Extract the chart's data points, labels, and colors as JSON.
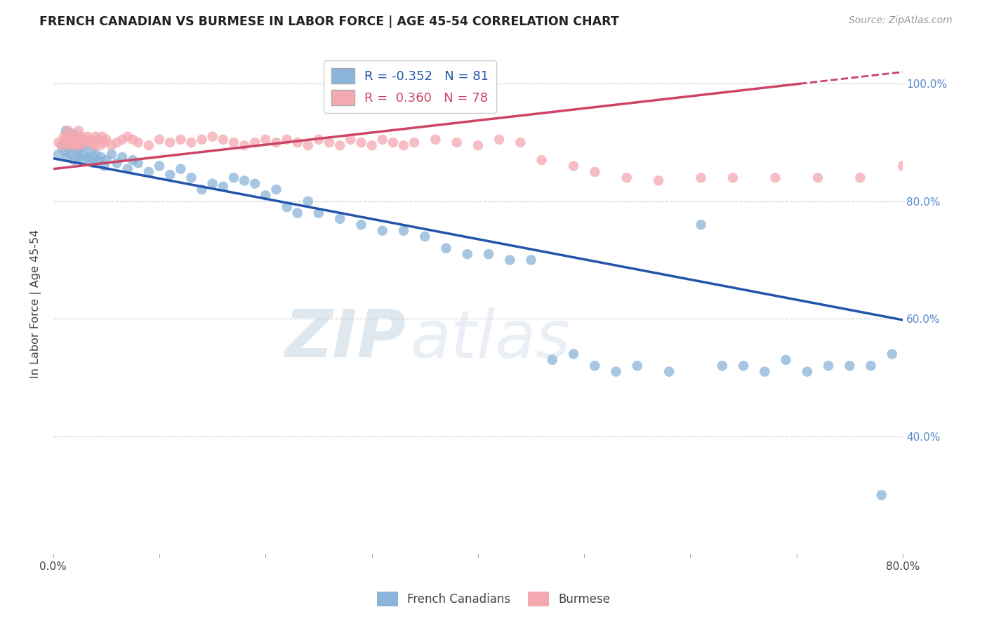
{
  "title": "FRENCH CANADIAN VS BURMESE IN LABOR FORCE | AGE 45-54 CORRELATION CHART",
  "source": "Source: ZipAtlas.com",
  "ylabel": "In Labor Force | Age 45-54",
  "xlim": [
    0.0,
    0.8
  ],
  "ylim": [
    0.2,
    1.05
  ],
  "yticks": [
    0.4,
    0.6,
    0.8,
    1.0
  ],
  "ytick_labels": [
    "40.0%",
    "60.0%",
    "80.0%",
    "100.0%"
  ],
  "blue_R": -0.352,
  "blue_N": 81,
  "pink_R": 0.36,
  "pink_N": 78,
  "blue_color": "#8ab4d9",
  "pink_color": "#f4a9b0",
  "blue_line_color": "#2255AA",
  "pink_line_color": "#CC4466",
  "watermark_zip": "ZIP",
  "watermark_atlas": "atlas",
  "legend_label_blue": "French Canadians",
  "legend_label_pink": "Burmese",
  "blue_line_x0": 0.0,
  "blue_line_y0": 0.873,
  "blue_line_x1": 0.8,
  "blue_line_y1": 0.598,
  "pink_line_x0": 0.0,
  "pink_line_y0": 0.855,
  "pink_line_x1": 0.8,
  "pink_line_y1": 1.02,
  "blue_points_x": [
    0.005,
    0.008,
    0.01,
    0.011,
    0.012,
    0.013,
    0.014,
    0.015,
    0.016,
    0.017,
    0.018,
    0.019,
    0.02,
    0.021,
    0.022,
    0.023,
    0.024,
    0.025,
    0.026,
    0.027,
    0.028,
    0.03,
    0.032,
    0.034,
    0.036,
    0.038,
    0.04,
    0.042,
    0.045,
    0.048,
    0.05,
    0.055,
    0.06,
    0.065,
    0.07,
    0.075,
    0.08,
    0.09,
    0.1,
    0.11,
    0.12,
    0.13,
    0.14,
    0.15,
    0.16,
    0.17,
    0.18,
    0.19,
    0.2,
    0.21,
    0.22,
    0.23,
    0.24,
    0.25,
    0.27,
    0.29,
    0.31,
    0.33,
    0.35,
    0.37,
    0.39,
    0.41,
    0.43,
    0.45,
    0.47,
    0.49,
    0.51,
    0.53,
    0.55,
    0.58,
    0.61,
    0.63,
    0.65,
    0.67,
    0.69,
    0.71,
    0.73,
    0.75,
    0.77,
    0.78,
    0.79
  ],
  "blue_points_y": [
    0.88,
    0.895,
    0.9,
    0.885,
    0.92,
    0.875,
    0.91,
    0.89,
    0.905,
    0.88,
    0.895,
    0.915,
    0.87,
    0.9,
    0.885,
    0.905,
    0.875,
    0.89,
    0.87,
    0.9,
    0.88,
    0.895,
    0.875,
    0.87,
    0.885,
    0.865,
    0.88,
    0.87,
    0.875,
    0.86,
    0.87,
    0.88,
    0.865,
    0.875,
    0.855,
    0.87,
    0.865,
    0.85,
    0.86,
    0.845,
    0.855,
    0.84,
    0.82,
    0.83,
    0.825,
    0.84,
    0.835,
    0.83,
    0.81,
    0.82,
    0.79,
    0.78,
    0.8,
    0.78,
    0.77,
    0.76,
    0.75,
    0.75,
    0.74,
    0.72,
    0.71,
    0.71,
    0.7,
    0.7,
    0.53,
    0.54,
    0.52,
    0.51,
    0.52,
    0.51,
    0.76,
    0.52,
    0.52,
    0.51,
    0.53,
    0.51,
    0.52,
    0.52,
    0.52,
    0.3,
    0.54
  ],
  "pink_points_x": [
    0.005,
    0.008,
    0.01,
    0.011,
    0.013,
    0.014,
    0.015,
    0.016,
    0.018,
    0.019,
    0.02,
    0.021,
    0.022,
    0.023,
    0.024,
    0.025,
    0.026,
    0.028,
    0.03,
    0.032,
    0.034,
    0.036,
    0.038,
    0.04,
    0.042,
    0.044,
    0.046,
    0.048,
    0.05,
    0.055,
    0.06,
    0.065,
    0.07,
    0.075,
    0.08,
    0.09,
    0.1,
    0.11,
    0.12,
    0.13,
    0.14,
    0.15,
    0.16,
    0.17,
    0.18,
    0.19,
    0.2,
    0.21,
    0.22,
    0.23,
    0.24,
    0.25,
    0.26,
    0.27,
    0.28,
    0.29,
    0.3,
    0.31,
    0.32,
    0.33,
    0.34,
    0.36,
    0.38,
    0.4,
    0.42,
    0.44,
    0.46,
    0.49,
    0.51,
    0.54,
    0.57,
    0.61,
    0.64,
    0.68,
    0.72,
    0.76,
    0.8,
    0.84
  ],
  "pink_points_y": [
    0.9,
    0.895,
    0.91,
    0.905,
    0.9,
    0.92,
    0.895,
    0.91,
    0.905,
    0.9,
    0.895,
    0.91,
    0.905,
    0.9,
    0.92,
    0.895,
    0.91,
    0.905,
    0.9,
    0.91,
    0.905,
    0.9,
    0.895,
    0.91,
    0.905,
    0.895,
    0.91,
    0.9,
    0.905,
    0.895,
    0.9,
    0.905,
    0.91,
    0.905,
    0.9,
    0.895,
    0.905,
    0.9,
    0.905,
    0.9,
    0.905,
    0.91,
    0.905,
    0.9,
    0.895,
    0.9,
    0.905,
    0.9,
    0.905,
    0.9,
    0.895,
    0.905,
    0.9,
    0.895,
    0.905,
    0.9,
    0.895,
    0.905,
    0.9,
    0.895,
    0.9,
    0.905,
    0.9,
    0.895,
    0.905,
    0.9,
    0.87,
    0.86,
    0.85,
    0.84,
    0.835,
    0.84,
    0.84,
    0.84,
    0.84,
    0.84,
    0.86,
    0.845
  ]
}
